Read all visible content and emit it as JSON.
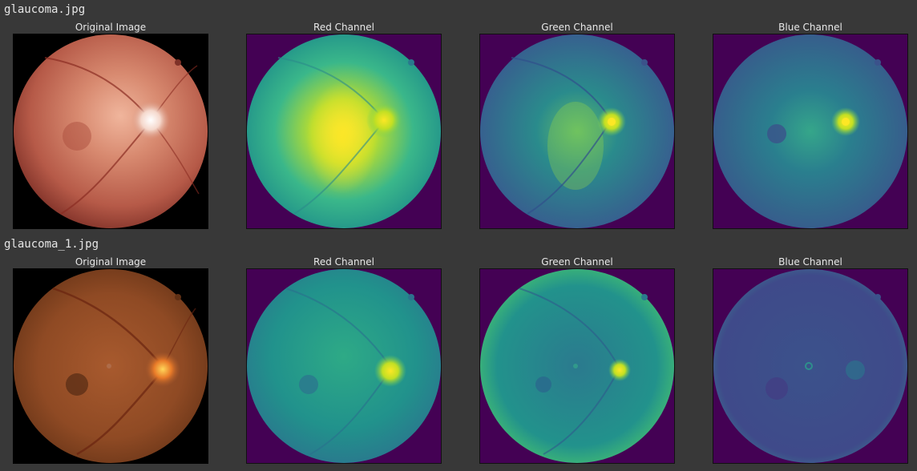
{
  "rows": [
    {
      "file": "glaucoma.jpg",
      "panels": [
        {
          "title": "Original Image",
          "icon": "fundus-original-image"
        },
        {
          "title": "Red Channel",
          "icon": "fundus-red-channel-image"
        },
        {
          "title": "Green Channel",
          "icon": "fundus-green-channel-image"
        },
        {
          "title": "Blue Channel",
          "icon": "fundus-blue-channel-image"
        }
      ]
    },
    {
      "file": "glaucoma_1.jpg",
      "panels": [
        {
          "title": "Original Image",
          "icon": "fundus-original-image"
        },
        {
          "title": "Red Channel",
          "icon": "fundus-red-channel-image"
        },
        {
          "title": "Green Channel",
          "icon": "fundus-green-channel-image"
        },
        {
          "title": "Blue Channel",
          "icon": "fundus-blue-channel-image"
        }
      ]
    }
  ],
  "colors": {
    "background": "#383838",
    "viridis_background": "#440154",
    "text": "#e6e6e6"
  }
}
